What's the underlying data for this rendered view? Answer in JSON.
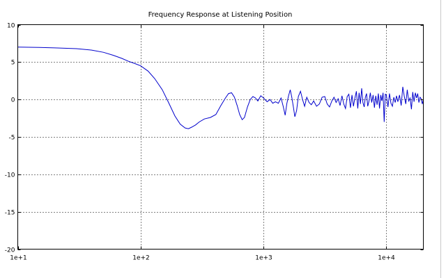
{
  "chart_data": {
    "type": "line",
    "title": "Frequency Response at Listening Position",
    "xlabel": "",
    "ylabel": "",
    "xscale": "log",
    "xlim": [
      10,
      20000
    ],
    "ylim": [
      -20,
      10
    ],
    "grid": true,
    "x_ticks": [
      {
        "value": 10,
        "label": "1e+1"
      },
      {
        "value": 100,
        "label": "1e+2"
      },
      {
        "value": 1000,
        "label": "1e+3"
      },
      {
        "value": 10000,
        "label": "1e+4"
      }
    ],
    "y_ticks": [
      {
        "value": 10,
        "label": "10"
      },
      {
        "value": 5,
        "label": "5"
      },
      {
        "value": 0,
        "label": "0"
      },
      {
        "value": -5,
        "label": "-5"
      },
      {
        "value": -10,
        "label": "-10"
      },
      {
        "value": -15,
        "label": "-15"
      },
      {
        "value": -20,
        "label": "-20"
      }
    ],
    "series": [
      {
        "color": "#0000cc",
        "points": [
          [
            10,
            7.0
          ],
          [
            15,
            6.95
          ],
          [
            20,
            6.9
          ],
          [
            30,
            6.8
          ],
          [
            40,
            6.6
          ],
          [
            50,
            6.3
          ],
          [
            60,
            5.9
          ],
          [
            70,
            5.5
          ],
          [
            80,
            5.1
          ],
          [
            90,
            4.8
          ],
          [
            100,
            4.5
          ],
          [
            115,
            3.8
          ],
          [
            130,
            2.8
          ],
          [
            150,
            1.3
          ],
          [
            170,
            -0.5
          ],
          [
            190,
            -2.2
          ],
          [
            210,
            -3.3
          ],
          [
            230,
            -3.8
          ],
          [
            245,
            -3.9
          ],
          [
            260,
            -3.7
          ],
          [
            280,
            -3.4
          ],
          [
            300,
            -3.0
          ],
          [
            330,
            -2.6
          ],
          [
            370,
            -2.4
          ],
          [
            410,
            -2.0
          ],
          [
            450,
            -0.8
          ],
          [
            490,
            0.2
          ],
          [
            520,
            0.8
          ],
          [
            550,
            0.9
          ],
          [
            580,
            0.3
          ],
          [
            610,
            -0.8
          ],
          [
            640,
            -2.0
          ],
          [
            670,
            -2.7
          ],
          [
            700,
            -2.4
          ],
          [
            740,
            -1.0
          ],
          [
            780,
            0.0
          ],
          [
            820,
            0.4
          ],
          [
            860,
            0.2
          ],
          [
            900,
            -0.2
          ],
          [
            950,
            0.5
          ],
          [
            1000,
            0.2
          ],
          [
            1070,
            -0.3
          ],
          [
            1130,
            0.0
          ],
          [
            1190,
            -0.5
          ],
          [
            1250,
            -0.3
          ],
          [
            1320,
            -0.5
          ],
          [
            1390,
            0.2
          ],
          [
            1450,
            -1.0
          ],
          [
            1500,
            -2.1
          ],
          [
            1550,
            -0.5
          ],
          [
            1600,
            0.5
          ],
          [
            1650,
            1.3
          ],
          [
            1700,
            0.3
          ],
          [
            1750,
            -1.0
          ],
          [
            1800,
            -2.3
          ],
          [
            1860,
            -1.5
          ],
          [
            1920,
            0.4
          ],
          [
            2000,
            1.1
          ],
          [
            2080,
            0.0
          ],
          [
            2160,
            -0.9
          ],
          [
            2250,
            0.3
          ],
          [
            2350,
            -0.4
          ],
          [
            2450,
            -0.7
          ],
          [
            2560,
            -0.2
          ],
          [
            2700,
            -0.9
          ],
          [
            2850,
            -0.6
          ],
          [
            3000,
            0.3
          ],
          [
            3150,
            0.4
          ],
          [
            3300,
            -0.6
          ],
          [
            3450,
            -1.0
          ],
          [
            3600,
            -0.2
          ],
          [
            3750,
            0.3
          ],
          [
            3900,
            -0.4
          ],
          [
            4050,
            0.1
          ],
          [
            4200,
            -0.8
          ],
          [
            4350,
            0.5
          ],
          [
            4500,
            -0.6
          ],
          [
            4650,
            -1.2
          ],
          [
            4800,
            0.4
          ],
          [
            4950,
            0.7
          ],
          [
            5100,
            -1.1
          ],
          [
            5250,
            0.6
          ],
          [
            5400,
            -0.9
          ],
          [
            5550,
            0.2
          ],
          [
            5700,
            1.1
          ],
          [
            5850,
            -1.2
          ],
          [
            6000,
            0.9
          ],
          [
            6150,
            -0.6
          ],
          [
            6300,
            1.5
          ],
          [
            6450,
            -0.4
          ],
          [
            6600,
            -1.0
          ],
          [
            6750,
            0.3
          ],
          [
            6900,
            0.8
          ],
          [
            7050,
            -0.9
          ],
          [
            7200,
            -0.3
          ],
          [
            7400,
            0.9
          ],
          [
            7600,
            -0.4
          ],
          [
            7800,
            0.6
          ],
          [
            8000,
            -1.1
          ],
          [
            8200,
            0.5
          ],
          [
            8400,
            -0.7
          ],
          [
            8600,
            0.8
          ],
          [
            8800,
            -1.2
          ],
          [
            9000,
            0.6
          ],
          [
            9200,
            -0.2
          ],
          [
            9400,
            0.9
          ],
          [
            9600,
            -3.0
          ],
          [
            9800,
            0.7
          ],
          [
            10000,
            0.6
          ],
          [
            10300,
            -1.0
          ],
          [
            10600,
            0.8
          ],
          [
            10900,
            -0.5
          ],
          [
            11200,
            -0.9
          ],
          [
            11500,
            0.3
          ],
          [
            11800,
            -0.4
          ],
          [
            12100,
            0.5
          ],
          [
            12400,
            -0.3
          ],
          [
            12800,
            0.6
          ],
          [
            13200,
            -0.8
          ],
          [
            13600,
            1.7
          ],
          [
            14000,
            0.4
          ],
          [
            14400,
            -0.6
          ],
          [
            14800,
            1.3
          ],
          [
            15200,
            -0.2
          ],
          [
            15600,
            0.2
          ],
          [
            16000,
            -1.3
          ],
          [
            16400,
            1.0
          ],
          [
            16800,
            -0.3
          ],
          [
            17200,
            0.9
          ],
          [
            17600,
            0.2
          ],
          [
            18000,
            0.8
          ],
          [
            18400,
            -0.4
          ],
          [
            18800,
            0.3
          ],
          [
            19200,
            0.1
          ],
          [
            19600,
            -0.6
          ],
          [
            20000,
            0.0
          ]
        ]
      }
    ]
  }
}
